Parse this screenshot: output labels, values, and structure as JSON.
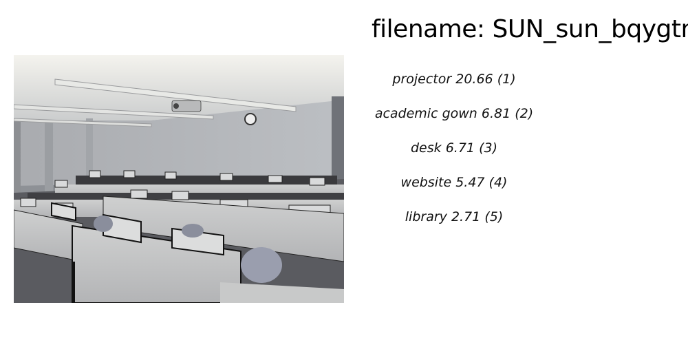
{
  "header": {
    "filename_text": "filename: SUN_sun_bqygtnvr"
  },
  "predictions": [
    {
      "label": "projector",
      "score": "20.66",
      "rank": "(1)"
    },
    {
      "label": "academic gown",
      "score": "6.81",
      "rank": "(2)"
    },
    {
      "label": "desk",
      "score": "6.71",
      "rank": "(3)"
    },
    {
      "label": "website",
      "score": "5.47",
      "rank": "(4)"
    },
    {
      "label": "library",
      "score": "2.71",
      "rank": "(5)"
    }
  ]
}
